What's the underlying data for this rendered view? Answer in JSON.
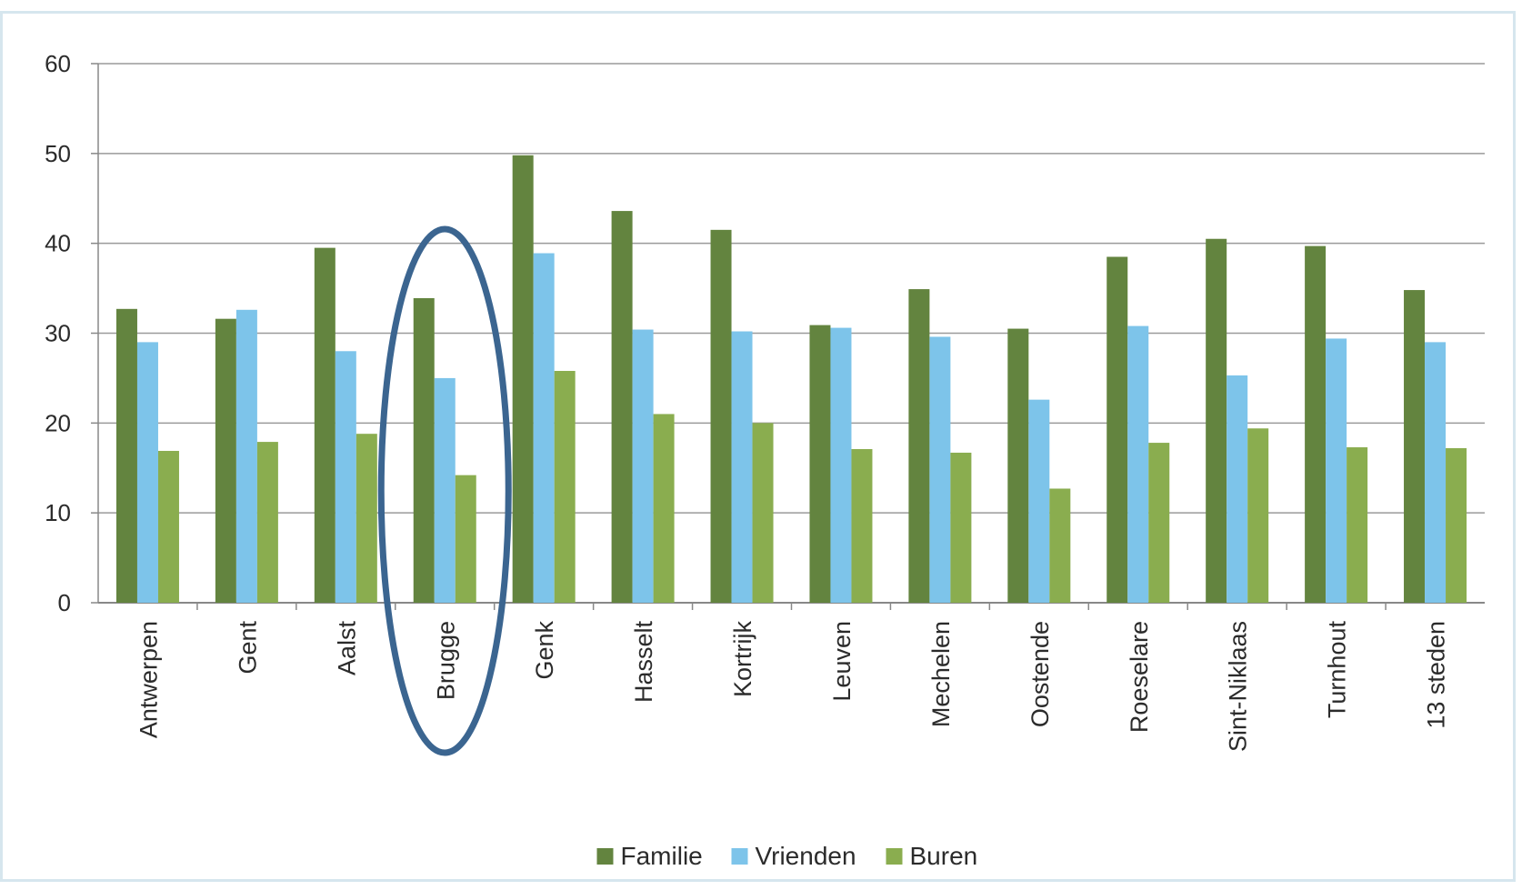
{
  "chart_data": {
    "type": "bar",
    "categories": [
      "Antwerpen",
      "Gent",
      "Aalst",
      "Brugge",
      "Genk",
      "Hasselt",
      "Kortrijk",
      "Leuven",
      "Mechelen",
      "Oostende",
      "Roeselare",
      "Sint-Niklaas",
      "Turnhout",
      "13 steden"
    ],
    "series": [
      {
        "name": "Familie",
        "color": "#63843f",
        "values": [
          32.7,
          31.6,
          39.5,
          33.9,
          49.8,
          43.6,
          41.5,
          30.9,
          34.9,
          30.5,
          38.5,
          40.5,
          39.7,
          34.8
        ]
      },
      {
        "name": "Vrienden",
        "color": "#7dc4ea",
        "values": [
          29.0,
          32.6,
          28.0,
          25.0,
          38.9,
          30.4,
          30.2,
          30.6,
          29.6,
          22.6,
          30.8,
          25.3,
          29.4,
          29.0
        ]
      },
      {
        "name": "Buren",
        "color": "#8aad4f",
        "values": [
          16.9,
          17.9,
          18.8,
          14.2,
          25.8,
          21.0,
          20.0,
          17.1,
          16.7,
          12.7,
          17.8,
          19.4,
          17.3,
          17.2
        ]
      }
    ],
    "ylim": [
      0,
      60
    ],
    "yticks": [
      0,
      10,
      20,
      30,
      40,
      50,
      60
    ],
    "grid": true,
    "legend": "bottom-center",
    "highlight": {
      "category": "Brugge",
      "shape": "ellipse",
      "color": "#3b6590"
    }
  }
}
